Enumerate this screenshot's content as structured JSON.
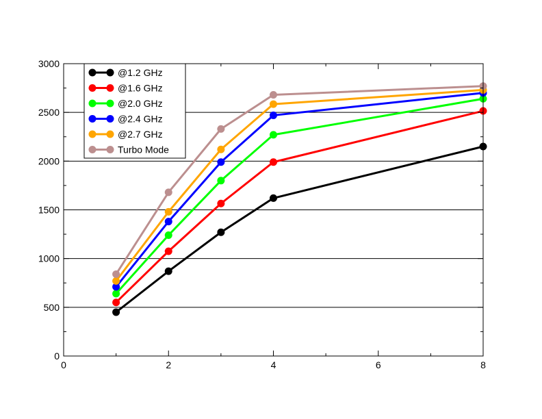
{
  "chart_data": {
    "type": "line",
    "title": "",
    "xlabel": "",
    "ylabel": "",
    "xlim": [
      0,
      8
    ],
    "ylim": [
      0,
      3000
    ],
    "x_ticks": [
      0,
      2,
      4,
      6,
      8
    ],
    "y_ticks": [
      0,
      500,
      1000,
      1500,
      2000,
      2500,
      3000
    ],
    "x_tick_labels": [
      "0",
      "2",
      "4",
      "6",
      "8"
    ],
    "y_tick_labels": [
      "0",
      "500",
      "1000",
      "1500",
      "2000",
      "2500",
      "3000"
    ],
    "grid": "horizontal",
    "legend_position": "top-left",
    "x": [
      1,
      2,
      3,
      4,
      8
    ],
    "series": [
      {
        "name": "@1.2 GHz",
        "color": "#000000",
        "values": [
          450,
          870,
          1270,
          1620,
          2150
        ]
      },
      {
        "name": "@1.6 GHz",
        "color": "#ff0000",
        "values": [
          550,
          1075,
          1565,
          1990,
          2515
        ]
      },
      {
        "name": "@2.0 GHz",
        "color": "#00ff00",
        "values": [
          640,
          1240,
          1800,
          2270,
          2640
        ]
      },
      {
        "name": "@2.4 GHz",
        "color": "#0000ff",
        "values": [
          710,
          1380,
          1990,
          2470,
          2700
        ]
      },
      {
        "name": "@2.7 GHz",
        "color": "#ffa500",
        "values": [
          770,
          1480,
          2120,
          2585,
          2730
        ]
      },
      {
        "name": "Turbo Mode",
        "color": "#bc8f8f",
        "values": [
          840,
          1680,
          2330,
          2680,
          2770
        ]
      }
    ]
  }
}
